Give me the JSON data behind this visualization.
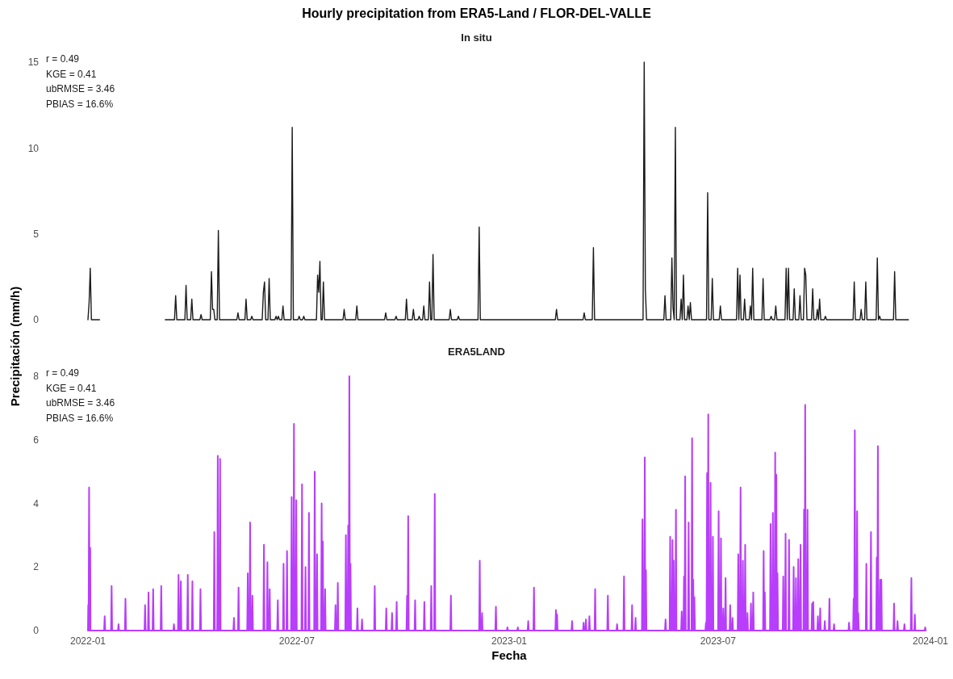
{
  "chart_data": [
    {
      "type": "line",
      "title": "Hourly precipitation from ERA5-Land / FLOR-DEL-VALLE",
      "subtitle": "In situ",
      "ylabel": "Precipitación (mm/h)",
      "annotations": [
        "r = 0.49",
        "KGE = 0.41",
        "ubRMSE = 3.46",
        "PBIAS = 16.6%"
      ],
      "xlim": [
        "2022-01-01",
        "2024-01-01"
      ],
      "ylim": [
        0,
        15
      ],
      "yticks": [
        0,
        5,
        10,
        15
      ],
      "tick_labels": "y",
      "series": [
        {
          "color": "#1a1a1a",
          "x": [
            "2022-01-01",
            "2022-01-02",
            "2022-01-03",
            "2022-01-04",
            "2022-01-11",
            "2022-02-01",
            "2022-03-09",
            "2022-03-17",
            "2022-03-18",
            "2022-03-19",
            "2022-03-26",
            "2022-03-27",
            "2022-03-28",
            "2022-03-31",
            "2022-04-01",
            "2022-04-02",
            "2022-04-08",
            "2022-04-09",
            "2022-04-10",
            "2022-04-17",
            "2022-04-18",
            "2022-04-19",
            "2022-04-20",
            "2022-04-21",
            "2022-04-23",
            "2022-04-24",
            "2022-04-25",
            "2022-05-10",
            "2022-05-11",
            "2022-05-12",
            "2022-05-17",
            "2022-05-18",
            "2022-05-19",
            "2022-05-22",
            "2022-05-23",
            "2022-05-24",
            "2022-06-01",
            "2022-06-02",
            "2022-06-03",
            "2022-06-04",
            "2022-06-06",
            "2022-06-07",
            "2022-06-08",
            "2022-06-12",
            "2022-06-13",
            "2022-06-14",
            "2022-06-15",
            "2022-06-16",
            "2022-06-18",
            "2022-06-19",
            "2022-06-20",
            "2022-06-26",
            "2022-06-27",
            "2022-06-28",
            "2022-07-02",
            "2022-07-03",
            "2022-07-04",
            "2022-07-06",
            "2022-07-07",
            "2022-07-08",
            "2022-07-18",
            "2022-07-19",
            "2022-07-20",
            "2022-07-21",
            "2022-07-22",
            "2022-07-23",
            "2022-07-24",
            "2022-07-25",
            "2022-08-10",
            "2022-08-11",
            "2022-08-12",
            "2022-08-21",
            "2022-08-22",
            "2022-08-23",
            "2022-09-15",
            "2022-09-16",
            "2022-09-17",
            "2022-09-24",
            "2022-09-25",
            "2022-09-26",
            "2022-10-03",
            "2022-10-04",
            "2022-10-05",
            "2022-10-09",
            "2022-10-10",
            "2022-10-11",
            "2022-10-14",
            "2022-10-15",
            "2022-10-16",
            "2022-10-18",
            "2022-10-19",
            "2022-10-20",
            "2022-10-23",
            "2022-10-24",
            "2022-10-25",
            "2022-10-26",
            "2022-10-27",
            "2022-10-28",
            "2022-11-10",
            "2022-11-11",
            "2022-11-12",
            "2022-11-17",
            "2022-11-18",
            "2022-11-19",
            "2022-12-05",
            "2022-12-06",
            "2022-12-07",
            "2023-02-10",
            "2023-02-11",
            "2023-02-12",
            "2023-03-06",
            "2023-03-07",
            "2023-03-08",
            "2023-03-14",
            "2023-03-15",
            "2023-03-16",
            "2023-04-27",
            "2023-04-28",
            "2023-04-29",
            "2023-04-30",
            "2023-05-15",
            "2023-05-16",
            "2023-05-17",
            "2023-05-21",
            "2023-05-22",
            "2023-05-23",
            "2023-05-24",
            "2023-05-25",
            "2023-05-26",
            "2023-05-29",
            "2023-05-30",
            "2023-05-31",
            "2023-06-01",
            "2023-06-02",
            "2023-06-04",
            "2023-06-05",
            "2023-06-06",
            "2023-06-07",
            "2023-06-08",
            "2023-06-21",
            "2023-06-22",
            "2023-06-23",
            "2023-06-25",
            "2023-06-26",
            "2023-06-27",
            "2023-07-02",
            "2023-07-03",
            "2023-07-04",
            "2023-07-17",
            "2023-07-18",
            "2023-07-19",
            "2023-07-20",
            "2023-07-21",
            "2023-07-23",
            "2023-07-24",
            "2023-07-25",
            "2023-07-28",
            "2023-07-29",
            "2023-07-30",
            "2023-07-31",
            "2023-08-01",
            "2023-08-08",
            "2023-08-09",
            "2023-08-10",
            "2023-08-15",
            "2023-08-16",
            "2023-08-17",
            "2023-08-19",
            "2023-08-20",
            "2023-08-21",
            "2023-08-28",
            "2023-08-29",
            "2023-08-30",
            "2023-08-31",
            "2023-09-01",
            "2023-09-04",
            "2023-09-05",
            "2023-09-06",
            "2023-09-09",
            "2023-09-10",
            "2023-09-11",
            "2023-09-13",
            "2023-09-14",
            "2023-09-15",
            "2023-09-16",
            "2023-09-20",
            "2023-09-21",
            "2023-09-22",
            "2023-09-24",
            "2023-09-25",
            "2023-09-26",
            "2023-09-27",
            "2023-09-28",
            "2023-10-01",
            "2023-10-02",
            "2023-10-03",
            "2023-10-26",
            "2023-10-27",
            "2023-10-28",
            "2023-11-01",
            "2023-11-02",
            "2023-11-03",
            "2023-11-05",
            "2023-11-06",
            "2023-11-07",
            "2023-11-15",
            "2023-11-16",
            "2023-11-17",
            "2023-11-18",
            "2023-11-19",
            "2023-11-30",
            "2023-12-01",
            "2023-12-02",
            "2023-12-13"
          ],
          "values": [
            0,
            1.0,
            3.0,
            0,
            0,
            null,
            0,
            0,
            1.4,
            0,
            0,
            2.0,
            0,
            0,
            1.2,
            0,
            0,
            0.3,
            0,
            0,
            2.8,
            0.6,
            0.6,
            0,
            0,
            5.2,
            0,
            0,
            0.4,
            0,
            0,
            1.2,
            0,
            0,
            0.2,
            0,
            0,
            1.6,
            2.2,
            0,
            0,
            2.4,
            0,
            0,
            0.2,
            0,
            0.2,
            0,
            0,
            0.8,
            0,
            0,
            11.2,
            0,
            0,
            0.2,
            0,
            0,
            0.2,
            0,
            0,
            2.6,
            1.6,
            3.4,
            0,
            0,
            2.2,
            0,
            0,
            0.6,
            0,
            0,
            0.8,
            0,
            0,
            0.4,
            0,
            0,
            0.2,
            0,
            0,
            1.2,
            0,
            0,
            0.6,
            0,
            0,
            0.2,
            0,
            0,
            0.8,
            0,
            0,
            2.2,
            0,
            0,
            3.8,
            0,
            0,
            0.6,
            0,
            0,
            0.2,
            0,
            0,
            5.4,
            0,
            0,
            0.6,
            0,
            0,
            0.4,
            0,
            0,
            4.2,
            0,
            0,
            15,
            1.8,
            0,
            0,
            1.4,
            0,
            0,
            3.6,
            0.7,
            0,
            11.2,
            0,
            0,
            1.2,
            0,
            2.6,
            0,
            0,
            0.8,
            0,
            1.0,
            0,
            0,
            7.4,
            0,
            0,
            2.4,
            0,
            0,
            0.8,
            0,
            0,
            3.0,
            0,
            2.6,
            0,
            0,
            1.2,
            0,
            0,
            0.8,
            0,
            3.0,
            0,
            0,
            2.4,
            0,
            0,
            0.2,
            0,
            0,
            0.8,
            0,
            0,
            3.0,
            0,
            3.0,
            0,
            0,
            1.8,
            0,
            0,
            1.4,
            0,
            0,
            3.0,
            2.6,
            0,
            0,
            1.8,
            0,
            0,
            0.6,
            0,
            1.2,
            0,
            0,
            0.2,
            0,
            0,
            2.2,
            0,
            0,
            0.6,
            0,
            0,
            2.2,
            0,
            0,
            3.6,
            0,
            0.2,
            0,
            0,
            2.8,
            0,
            0
          ]
        }
      ]
    },
    {
      "type": "line",
      "title": "ERA5LAND",
      "xlabel": "Fecha",
      "annotations": [
        "r = 0.49",
        "KGE = 0.41",
        "ubRMSE = 3.46",
        "PBIAS = 16.6%"
      ],
      "xticks": [
        {
          "value": "2022-01-01",
          "label": "2022-01"
        },
        {
          "value": "2022-07-01",
          "label": "2022-07"
        },
        {
          "value": "2023-01-01",
          "label": "2023-01"
        },
        {
          "value": "2023-07-01",
          "label": "2023-07"
        },
        {
          "value": "2024-01-01",
          "label": "2024-01"
        }
      ],
      "xlim": [
        "2022-01-01",
        "2024-01-01"
      ],
      "ylim": [
        0,
        8
      ],
      "yticks": [
        0,
        2,
        4,
        6,
        8
      ],
      "series": [
        {
          "color": "#b83dfc",
          "x": [
            "2022-01-01T00:00",
            "2022-01-01T06:00",
            "2022-01-01T11:00",
            "2022-01-01T12:00",
            "2022-01-02T00:00",
            "2022-01-02T11:00",
            "2022-01-02T12:00",
            "2022-01-02T23:00",
            "2022-01-03T06:00",
            "2022-01-15T00:00",
            "2022-01-15T12:00",
            "2022-01-15T23:00",
            "2022-01-21T00:00",
            "2022-01-21T12:00",
            "2022-01-21T23:00",
            "2022-01-27T00:00",
            "2022-01-27T12:00",
            "2022-01-27T23:00",
            "2022-02-02T00:00",
            "2022-02-02T12:00",
            "2022-02-02T23:00",
            "2022-02-19T00:00",
            "2022-02-19T12:00",
            "2022-02-19T23:00",
            "2022-02-22T00:00",
            "2022-02-22T12:00",
            "2022-02-22T23:00",
            "2022-02-26T00:00",
            "2022-02-26T12:00",
            "2022-02-26T23:00",
            "2022-03-05T00:00",
            "2022-03-05T12:00",
            "2022-03-05T23:00",
            "2022-03-16T00:00",
            "2022-03-16T12:00",
            "2022-03-16T23:00",
            "2022-03-20T00:00",
            "2022-03-20T12:00",
            "2022-03-20T23:00",
            "2022-03-22T00:00",
            "2022-03-22T12:00",
            "2022-03-22T23:00",
            "2022-03-28T00:00",
            "2022-03-28T12:00",
            "2022-03-28T23:00",
            "2022-04-01T00:00",
            "2022-04-01T12:00",
            "2022-04-01T23:00",
            "2022-04-08T00:00",
            "2022-04-08T12:00",
            "2022-04-08T23:00",
            "2022-04-20T00:00",
            "2022-04-20T12:00",
            "2022-04-20T23:00",
            "2022-04-23T00:00",
            "2022-04-23T12:00",
            "2022-04-23T23:00",
            "2022-04-25T00:00",
            "2022-04-25T12:00",
            "2022-04-25T23:00",
            "2022-05-07T00:00",
            "2022-05-07T12:00",
            "2022-05-07T23:00",
            "2022-05-11T00:00",
            "2022-05-11T12:00",
            "2022-05-11T23:00",
            "2022-05-19T00:00",
            "2022-05-19T12:00",
            "2022-05-19T23:00",
            "2022-05-21T00:00",
            "2022-05-21T12:00",
            "2022-05-21T23:00",
            "2022-05-23T00:00",
            "2022-05-23T12:00",
            "2022-05-23T23:00",
            "2022-06-02T00:00",
            "2022-06-02T12:00",
            "2022-06-02T23:00",
            "2022-06-05T00:00",
            "2022-06-05T12:00",
            "2022-06-05T23:00",
            "2022-06-07T00:00",
            "2022-06-07T12:00",
            "2022-06-07T23:00",
            "2022-06-14T00:00",
            "2022-06-14T12:00",
            "2022-06-14T23:00",
            "2022-06-19T00:00",
            "2022-06-19T12:00",
            "2022-06-19T23:00",
            "2022-06-22T00:00",
            "2022-06-22T12:00",
            "2022-06-22T23:00",
            "2022-06-26T00:00",
            "2022-06-26T12:00",
            "2022-06-26T23:00",
            "2022-06-28T00:00",
            "2022-06-28T12:00",
            "2022-06-28T23:00",
            "2022-06-30T00:00",
            "2022-06-30T12:00",
            "2022-06-30T23:00",
            "2022-07-05T00:00",
            "2022-07-05T12:00",
            "2022-07-05T23:00",
            "2022-07-08T00:00",
            "2022-07-08T12:00",
            "2022-07-08T23:00",
            "2022-07-11T00:00",
            "2022-07-11T12:00",
            "2022-07-11T23:00",
            "2022-07-16T00:00",
            "2022-07-16T12:00",
            "2022-07-16T23:00",
            "2022-07-18T00:00",
            "2022-07-18T12:00",
            "2022-07-18T23:00",
            "2022-07-22T00:00",
            "2022-07-22T12:00",
            "2022-07-22T23:00",
            "2022-07-23T00:00",
            "2022-07-23T12:00",
            "2022-07-23T23:00",
            "2022-07-25T00:00",
            "2022-07-25T12:00",
            "2022-07-25T23:00",
            "2022-08-03T00:00",
            "2022-08-03T12:00",
            "2022-08-03T23:00",
            "2022-08-05T00:00",
            "2022-08-05T12:00",
            "2022-08-05T23:00",
            "2022-08-12T00:00",
            "2022-08-12T12:00",
            "2022-08-12T23:00",
            "2022-08-14T00:00",
            "2022-08-14T12:00",
            "2022-08-14T23:00",
            "2022-08-15T00:00",
            "2022-08-15T12:00",
            "2022-08-15T23:00",
            "2022-08-16T00:00",
            "2022-08-16T12:00",
            "2022-08-16T23:00",
            "2022-08-22T00:00",
            "2022-08-22T12:00",
            "2022-08-22T23:00",
            "2022-08-26T00:00",
            "2022-08-26T12:00",
            "2022-08-26T23:00",
            "2022-09-06T00:00",
            "2022-09-06T12:00",
            "2022-09-06T23:00",
            "2022-09-16T00:00",
            "2022-09-16T12:00",
            "2022-09-16T23:00",
            "2022-09-21T00:00",
            "2022-09-21T12:00",
            "2022-09-21T23:00",
            "2022-09-25T00:00",
            "2022-09-25T12:00",
            "2022-09-25T23:00",
            "2022-10-04T00:00",
            "2022-10-04T12:00",
            "2022-10-04T23:00",
            "2022-10-05T00:00",
            "2022-10-05T12:00",
            "2022-10-05T23:00",
            "2022-10-11T00:00",
            "2022-10-11T12:00",
            "2022-10-11T23:00",
            "2022-10-19T00:00",
            "2022-10-19T12:00",
            "2022-10-19T23:00",
            "2022-10-25T00:00",
            "2022-10-25T12:00",
            "2022-10-25T23:00",
            "2022-10-28T00:00",
            "2022-10-28T12:00",
            "2022-10-28T23:00",
            "2022-11-11T00:00",
            "2022-11-11T12:00",
            "2022-11-11T23:00",
            "2022-12-06T00:00",
            "2022-12-06T12:00",
            "2022-12-06T23:00",
            "2022-12-08T00:00",
            "2022-12-08T12:00",
            "2022-12-08T23:00",
            "2022-12-20T00:00",
            "2022-12-20T12:00",
            "2022-12-20T23:00",
            "2022-12-30T00:00",
            "2022-12-30T12:00",
            "2022-12-30T23:00",
            "2023-01-08T00:00",
            "2023-01-08T12:00",
            "2023-01-08T23:00",
            "2023-01-17T00:00",
            "2023-01-17T12:00",
            "2023-01-17T23:00",
            "2023-01-22T00:00",
            "2023-01-22T12:00",
            "2023-01-22T23:00",
            "2023-02-10T00:00",
            "2023-02-10T12:00",
            "2023-02-10T23:00",
            "2023-02-11T00:00",
            "2023-02-11T12:00",
            "2023-02-11T23:00",
            "2023-02-24T00:00",
            "2023-02-24T12:00",
            "2023-02-24T23:00",
            "2023-03-06T00:00",
            "2023-03-06T12:00",
            "2023-03-06T23:00",
            "2023-03-08T00:00",
            "2023-03-08T12:00",
            "2023-03-08T23:00",
            "2023-03-11T00:00",
            "2023-03-11T12:00",
            "2023-03-11T23:00",
            "2023-03-16T00:00",
            "2023-03-16T12:00",
            "2023-03-16T23:00",
            "2023-03-27T00:00",
            "2023-03-27T12:00",
            "2023-03-27T23:00",
            "2023-04-04T00:00",
            "2023-04-04T12:00",
            "2023-04-04T23:00",
            "2023-04-10T00:00",
            "2023-04-10T12:00",
            "2023-04-10T23:00",
            "2023-04-17T00:00",
            "2023-04-17T12:00",
            "2023-04-17T23:00",
            "2023-04-20T00:00",
            "2023-04-20T12:00",
            "2023-04-20T23:00",
            "2023-04-26T00:00",
            "2023-04-26T12:00",
            "2023-04-26T23:00",
            "2023-04-28T00:00",
            "2023-04-28T12:00",
            "2023-04-28T23:00",
            "2023-04-29T00:00",
            "2023-04-29T12:00",
            "2023-04-29T23:00",
            "2023-05-16T00:00",
            "2023-05-16T12:00",
            "2023-05-16T23:00",
            "2023-05-20T00:00",
            "2023-05-20T12:00",
            "2023-05-20T23:00",
            "2023-05-22T00:00",
            "2023-05-22T12:00",
            "2023-05-22T23:00",
            "2023-05-23T00:00",
            "2023-05-23T12:00",
            "2023-05-23T23:00",
            "2023-05-25T00:00",
            "2023-05-25T12:00",
            "2023-05-25T23:00",
            "2023-05-30T00:00",
            "2023-05-30T12:00",
            "2023-05-30T23:00",
            "2023-06-01T00:00",
            "2023-06-01T12:00",
            "2023-06-01T23:00",
            "2023-06-02T00:00",
            "2023-06-02T12:00",
            "2023-06-02T23:00",
            "2023-06-05T00:00",
            "2023-06-05T12:00",
            "2023-06-05T23:00",
            "2023-06-08T00:00",
            "2023-06-08T12:00",
            "2023-06-08T23:00",
            "2023-06-09T00:00",
            "2023-06-09T12:00",
            "2023-06-09T23:00",
            "2023-06-10T00:00",
            "2023-06-10T12:00",
            "2023-06-10T23:00",
            "2023-06-20T00:00",
            "2023-06-20T12:00",
            "2023-06-20T23:00",
            "2023-06-21T00:00",
            "2023-06-21T12:00",
            "2023-06-21T23:00",
            "2023-06-22T00:00",
            "2023-06-22T12:00",
            "2023-06-22T23:00",
            "2023-06-24T00:00",
            "2023-06-24T12:00",
            "2023-06-24T23:00",
            "2023-06-26T00:00",
            "2023-06-26T12:00",
            "2023-06-26T23:00",
            "2023-07-01T00:00",
            "2023-07-01T12:00",
            "2023-07-01T23:00",
            "2023-07-03T00:00",
            "2023-07-03T12:00",
            "2023-07-03T23:00",
            "2023-07-05T00:00",
            "2023-07-05T12:00",
            "2023-07-05T23:00",
            "2023-07-07T00:00",
            "2023-07-07T12:00",
            "2023-07-07T23:00",
            "2023-07-11T00:00",
            "2023-07-11T12:00",
            "2023-07-11T23:00",
            "2023-07-13T00:00",
            "2023-07-13T12:00",
            "2023-07-13T23:00",
            "2023-07-18T00:00",
            "2023-07-18T12:00",
            "2023-07-18T23:00",
            "2023-07-20T00:00",
            "2023-07-20T12:00",
            "2023-07-20T23:00",
            "2023-07-22T00:00",
            "2023-07-22T12:00",
            "2023-07-22T23:00",
            "2023-07-24T00:00",
            "2023-07-24T12:00",
            "2023-07-24T23:00",
            "2023-07-26T00:00",
            "2023-07-26T12:00",
            "2023-07-26T23:00",
            "2023-07-29T00:00",
            "2023-07-29T12:00",
            "2023-07-29T23:00",
            "2023-07-31T00:00",
            "2023-07-31T12:00",
            "2023-07-31T23:00",
            "2023-08-09T00:00",
            "2023-08-09T12:00",
            "2023-08-09T23:00",
            "2023-08-10T00:00",
            "2023-08-10T12:00",
            "2023-08-10T23:00",
            "2023-08-15T00:00",
            "2023-08-15T12:00",
            "2023-08-15T23:00",
            "2023-08-17T00:00",
            "2023-08-17T12:00",
            "2023-08-17T23:00",
            "2023-08-19T00:00",
            "2023-08-19T12:00",
            "2023-08-19T23:00",
            "2023-08-20T00:00",
            "2023-08-20T12:00",
            "2023-08-20T23:00",
            "2023-08-21T00:00",
            "2023-08-21T12:00",
            "2023-08-21T23:00",
            "2023-08-26T00:00",
            "2023-08-26T12:00",
            "2023-08-26T23:00",
            "2023-08-28T00:00",
            "2023-08-28T12:00",
            "2023-08-28T23:00",
            "2023-08-31T00:00",
            "2023-08-31T12:00",
            "2023-08-31T23:00",
            "2023-09-04T00:00",
            "2023-09-04T12:00",
            "2023-09-04T23:00",
            "2023-09-06T00:00",
            "2023-09-06T12:00",
            "2023-09-06T23:00",
            "2023-09-08T00:00",
            "2023-09-08T12:00",
            "2023-09-08T23:00",
            "2023-09-10T00:00",
            "2023-09-10T12:00",
            "2023-09-10T23:00",
            "2023-09-13T00:00",
            "2023-09-13T12:00",
            "2023-09-13T23:00",
            "2023-09-14T00:00",
            "2023-09-14T12:00",
            "2023-09-14T23:00",
            "2023-09-16T00:00",
            "2023-09-16T12:00",
            "2023-09-16T23:00",
            "2023-09-20T00:00",
            "2023-09-20T12:00",
            "2023-09-20T23:00",
            "2023-09-21T00:00",
            "2023-09-21T12:00",
            "2023-09-21T23:00",
            "2023-09-25T00:00",
            "2023-09-25T12:00",
            "2023-09-25T23:00",
            "2023-09-27T00:00",
            "2023-09-27T12:00",
            "2023-09-27T23:00",
            "2023-10-01T00:00",
            "2023-10-01T12:00",
            "2023-10-01T23:00",
            "2023-10-05T00:00",
            "2023-10-05T12:00",
            "2023-10-05T23:00",
            "2023-10-09T00:00",
            "2023-10-09T12:00",
            "2023-10-09T23:00",
            "2023-10-22T00:00",
            "2023-10-22T12:00",
            "2023-10-22T23:00",
            "2023-10-26T00:00",
            "2023-10-26T12:00",
            "2023-10-26T23:00",
            "2023-10-27T00:00",
            "2023-10-27T12:00",
            "2023-10-27T23:00",
            "2023-10-29T00:00",
            "2023-10-29T12:00",
            "2023-10-29T23:00",
            "2023-10-30T00:00",
            "2023-10-30T12:00",
            "2023-10-30T23:00",
            "2023-11-06T00:00",
            "2023-11-06T12:00",
            "2023-11-06T23:00",
            "2023-11-10T00:00",
            "2023-11-10T12:00",
            "2023-11-10T23:00",
            "2023-11-15T00:00",
            "2023-11-15T12:00",
            "2023-11-15T23:00",
            "2023-11-16T00:00",
            "2023-11-16T12:00",
            "2023-11-16T23:00",
            "2023-11-18T00:00",
            "2023-11-18T12:00",
            "2023-11-18T23:00",
            "2023-11-19T00:00",
            "2023-11-19T12:00",
            "2023-11-19T23:00",
            "2023-11-30T00:00",
            "2023-11-30T12:00",
            "2023-11-30T23:00",
            "2023-12-03T00:00",
            "2023-12-03T12:00",
            "2023-12-03T23:00",
            "2023-12-09T00:00",
            "2023-12-09T12:00",
            "2023-12-09T23:00",
            "2023-12-15T00:00",
            "2023-12-15T12:00",
            "2023-12-15T23:00",
            "2023-12-18T00:00",
            "2023-12-18T12:00",
            "2023-12-18T23:00",
            "2023-12-27T00:00",
            "2023-12-27T12:00",
            "2023-12-27T23:00"
          ],
          "values": [
            0,
            0.8,
            0,
            0,
            4.5,
            0,
            0,
            2.6,
            0,
            0,
            0.45,
            0,
            0,
            1.4,
            0,
            0,
            0.2,
            0,
            0,
            1.0,
            0,
            0,
            0.8,
            0,
            0,
            1.2,
            0,
            0,
            1.3,
            0,
            0,
            1.4,
            0,
            0,
            0.2,
            0,
            0,
            1.75,
            0,
            0,
            1.55,
            0,
            0,
            1.75,
            0,
            0,
            1.55,
            0,
            0,
            1.3,
            0,
            0,
            3.1,
            0,
            0,
            5.5,
            0,
            0,
            5.4,
            0,
            0,
            0.4,
            0,
            0,
            1.35,
            0,
            0,
            1.8,
            0,
            0,
            3.4,
            0,
            0,
            1.1,
            0,
            0,
            2.7,
            0,
            0,
            2.15,
            0,
            0,
            1.3,
            0,
            0,
            0.95,
            0,
            0,
            2.1,
            0,
            0,
            2.5,
            0,
            0,
            4.2,
            0,
            0,
            6.5,
            0,
            0,
            4.1,
            0,
            0,
            4.6,
            0,
            0,
            2.0,
            0,
            0,
            3.7,
            0,
            0,
            5.0,
            0,
            0,
            2.4,
            0,
            0,
            4.0,
            0,
            0,
            2.8,
            0,
            0,
            1.3,
            0,
            0,
            0.8,
            0,
            0,
            1.5,
            0,
            0,
            3.0,
            0,
            0,
            3.3,
            0,
            0,
            8.0,
            0,
            0,
            2.1,
            0,
            0,
            0.7,
            0,
            0,
            0.35,
            0,
            0,
            1.4,
            0,
            0,
            0.7,
            0,
            0,
            0.55,
            0,
            0,
            0.9,
            0,
            0,
            1.1,
            0,
            0,
            3.6,
            0,
            0,
            0.95,
            0,
            0,
            0.9,
            0,
            0,
            1.4,
            0,
            0,
            4.3,
            0,
            0,
            1.1,
            0,
            0,
            2.2,
            0,
            0,
            0.55,
            0,
            0,
            0.75,
            0,
            0,
            0.1,
            0,
            0,
            0.1,
            0,
            0,
            0.3,
            0,
            0,
            1.35,
            0,
            0,
            0.65,
            0,
            0,
            0.5,
            0,
            0,
            0.3,
            0,
            0,
            0.25,
            0,
            0,
            0.35,
            0,
            0,
            0.45,
            0,
            0,
            1.3,
            0,
            0,
            1.1,
            0,
            0,
            0.2,
            0,
            0,
            1.7,
            0,
            0,
            0.8,
            0,
            0,
            0.4,
            0,
            0,
            3.5,
            0,
            0,
            5.45,
            0,
            0,
            1.9,
            0,
            0,
            0.35,
            0,
            0,
            2.95,
            0,
            0,
            2.85,
            0,
            0,
            2.2,
            0,
            0,
            3.8,
            0,
            0,
            0.6,
            0,
            0,
            1.7,
            0,
            0,
            4.85,
            0,
            0,
            3.4,
            0,
            0,
            6.05,
            0,
            0,
            1.6,
            0,
            0,
            1.05,
            0,
            0,
            0.25,
            0,
            0,
            4.95,
            0,
            0,
            6.8,
            0,
            0,
            4.65,
            0,
            0,
            2.95,
            0,
            0,
            3.75,
            0,
            0,
            2.9,
            0,
            0,
            0.7,
            0,
            0,
            1.65,
            0,
            0,
            0.8,
            0,
            0,
            0.4,
            0,
            0,
            2.4,
            0,
            0,
            4.5,
            0,
            0,
            2.2,
            0,
            0,
            2.7,
            0,
            0,
            0.55,
            0,
            0,
            0.85,
            0,
            0,
            1.2,
            0,
            0,
            2.5,
            0,
            0,
            1.2,
            0,
            0,
            3.35,
            0,
            0,
            3.7,
            0,
            0,
            5.6,
            0,
            0,
            4.9,
            0,
            0,
            1.8,
            0,
            0,
            1.7,
            0,
            0,
            3.05,
            0,
            0,
            2.85,
            0,
            0,
            2.0,
            0,
            0,
            1.65,
            0,
            0,
            2.25,
            0,
            0,
            2.7,
            0,
            0,
            3.8,
            0,
            0,
            7.1,
            0,
            0,
            3.8,
            0,
            0,
            0.85,
            0,
            0,
            0.9,
            0,
            0,
            0.45,
            0,
            0,
            0.7,
            0,
            0,
            0.3,
            0,
            0,
            1.0,
            0,
            0,
            0.2,
            0,
            0,
            0.25,
            0,
            0,
            1.0,
            0,
            0,
            6.3,
            0,
            0,
            3.75,
            0,
            0,
            0.55,
            0,
            0,
            2.1,
            0,
            0,
            3.1,
            0,
            0,
            2.3,
            0,
            0,
            5.8,
            0,
            0,
            1.6,
            0,
            0,
            1.6,
            0,
            0,
            0.85,
            0,
            0,
            0.3,
            0,
            0,
            0.2,
            0,
            0,
            1.65,
            0,
            0,
            0.5,
            0,
            0,
            0.1,
            0
          ]
        }
      ]
    }
  ]
}
